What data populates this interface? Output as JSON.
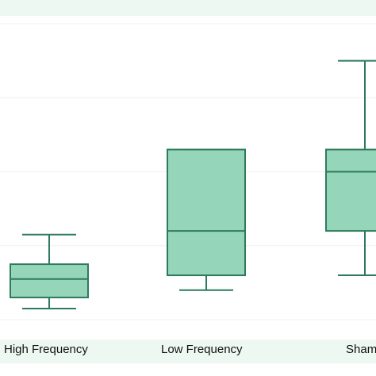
{
  "chart_data": {
    "type": "boxplot",
    "categories": [
      "High Frequency",
      "Low Frequency",
      "Sham"
    ],
    "boxes": [
      {
        "category": "High Frequency",
        "whisker_low": 0.15,
        "q1": 0.3,
        "median": 0.55,
        "q3": 0.75,
        "whisker_high": 1.15
      },
      {
        "category": "Low Frequency",
        "whisker_low": 0.4,
        "q1": 0.6,
        "median": 1.2,
        "q3": 2.3,
        "whisker_high": 2.3
      },
      {
        "category": "Sham",
        "whisker_low": 0.6,
        "q1": 1.2,
        "median": 2.0,
        "q3": 2.3,
        "whisker_high": 3.5
      }
    ],
    "ylim": [
      0,
      4
    ],
    "grid": true,
    "colors": {
      "box_fill": "#95d5b9",
      "box_edge": "#2e7a5c",
      "band": "#eef8f2"
    }
  },
  "x_labels": [
    "High Frequency",
    "Low Frequency",
    "Sham"
  ]
}
